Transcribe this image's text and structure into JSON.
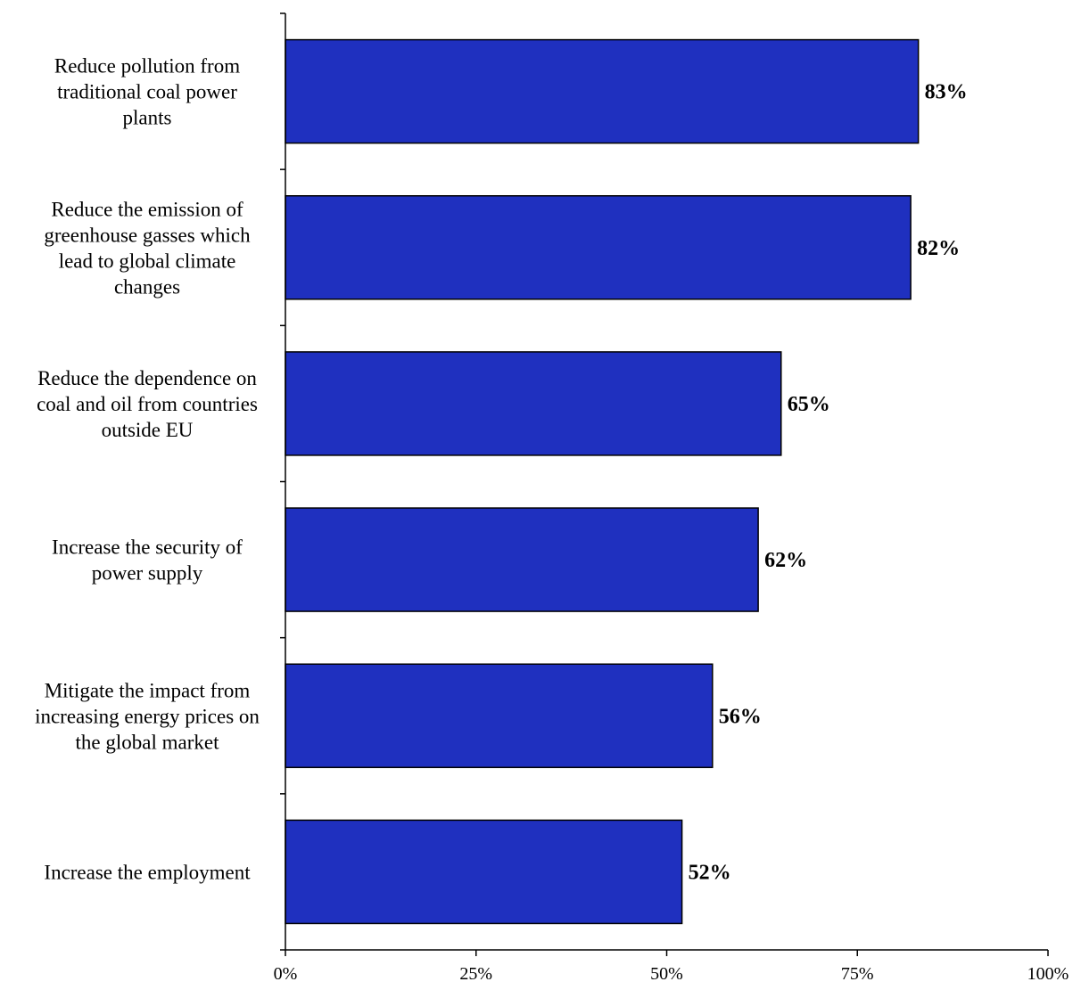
{
  "chart_data": {
    "type": "bar",
    "orientation": "horizontal",
    "categories": [
      [
        "Reduce pollution from",
        "traditional coal power",
        "plants"
      ],
      [
        "Reduce the emission of",
        "greenhouse gasses which",
        "lead to global climate",
        "changes"
      ],
      [
        "Reduce the dependence on",
        "coal and oil from countries",
        "outside EU"
      ],
      [
        "Increase the security of",
        "power supply"
      ],
      [
        "Mitigate the impact from",
        "increasing energy prices on",
        "the global market"
      ],
      [
        "Increase the employment"
      ]
    ],
    "values": [
      83,
      82,
      65,
      62,
      56,
      52
    ],
    "value_labels": [
      "83%",
      "82%",
      "65%",
      "62%",
      "56%",
      "52%"
    ],
    "xlim": [
      0,
      100
    ],
    "xticks": [
      0,
      25,
      50,
      75,
      100
    ],
    "xtick_labels": [
      "0%",
      "25%",
      "50%",
      "75%",
      "100%"
    ],
    "title": "",
    "xlabel": "",
    "ylabel": "",
    "grid": false,
    "legend": "none",
    "bar_color": "#1f30bf",
    "bar_border_color": "#000000"
  }
}
